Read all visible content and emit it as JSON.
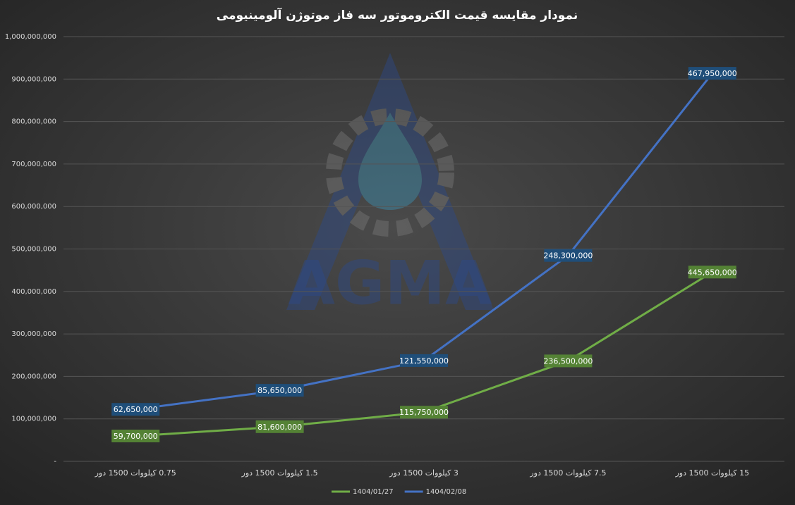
{
  "chart_data": {
    "type": "stacked-line",
    "title": "نمودار مقایسه قیمت الکتروموتور سه فاز موتوژن آلومینیومی",
    "watermark": "AGMA",
    "categories": [
      "0.75 کیلووات 1500 دور",
      "1.5 کیلووات 1500 دور",
      "3 کیلووات 1500 دور",
      "7.5 کیلووات 1500 دور",
      "15 کیلووات 1500 دور"
    ],
    "series": [
      {
        "name": "1404/01/27",
        "color": "#70ad47",
        "label_color": "#548235",
        "values": [
          59700000,
          81600000,
          115750000,
          236500000,
          445650000
        ],
        "value_labels": [
          "59,700,000",
          "81,600,000",
          "115,750,000",
          "236,500,000",
          "445,650,000"
        ]
      },
      {
        "name": "1404/02/08",
        "color": "#4472c4",
        "label_color": "#1f4e79",
        "values": [
          62650000,
          85650000,
          121550000,
          248300000,
          467950000
        ],
        "value_labels": [
          "62,650,000",
          "85,650,000",
          "121,550,000",
          "248,300,000",
          "467,950,000"
        ]
      }
    ],
    "ylim": [
      0,
      1000000000
    ],
    "yticks": [
      {
        "value": 0,
        "label": "-"
      },
      {
        "value": 100000000,
        "label": "100,000,000"
      },
      {
        "value": 200000000,
        "label": "200,000,000"
      },
      {
        "value": 300000000,
        "label": "300,000,000"
      },
      {
        "value": 400000000,
        "label": "400,000,000"
      },
      {
        "value": 500000000,
        "label": "500,000,000"
      },
      {
        "value": 600000000,
        "label": "600,000,000"
      },
      {
        "value": 700000000,
        "label": "700,000,000"
      },
      {
        "value": 800000000,
        "label": "800,000,000"
      },
      {
        "value": 900000000,
        "label": "900,000,000"
      },
      {
        "value": 1000000000,
        "label": "1,000,000,000"
      }
    ],
    "grid": true,
    "legend": "bottom"
  }
}
